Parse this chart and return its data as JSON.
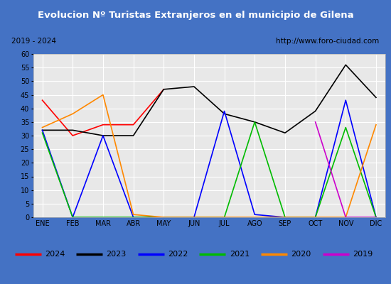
{
  "title": "Evolucion Nº Turistas Extranjeros en el municipio de Gilena",
  "subtitle_left": "2019 - 2024",
  "subtitle_right": "http://www.foro-ciudad.com",
  "months": [
    "ENE",
    "FEB",
    "MAR",
    "ABR",
    "MAY",
    "JUN",
    "JUL",
    "AGO",
    "SEP",
    "OCT",
    "NOV",
    "DIC"
  ],
  "series": {
    "2024": {
      "color": "#ff0000",
      "data": [
        43,
        30,
        34,
        34,
        47,
        null,
        null,
        null,
        null,
        null,
        null,
        null
      ]
    },
    "2023": {
      "color": "#000000",
      "data": [
        32,
        32,
        30,
        30,
        47,
        48,
        38,
        35,
        31,
        39,
        56,
        44
      ]
    },
    "2022": {
      "color": "#0000ff",
      "data": [
        32,
        0,
        30,
        0,
        0,
        0,
        39,
        1,
        0,
        0,
        43,
        0
      ]
    },
    "2021": {
      "color": "#00bb00",
      "data": [
        31,
        0,
        0,
        0,
        0,
        0,
        0,
        35,
        0,
        0,
        33,
        0
      ]
    },
    "2020": {
      "color": "#ff8800",
      "data": [
        33,
        38,
        45,
        1,
        0,
        0,
        0,
        0,
        0,
        0,
        0,
        34
      ]
    },
    "2019": {
      "color": "#cc00cc",
      "data": [
        null,
        null,
        null,
        null,
        null,
        null,
        null,
        null,
        null,
        35,
        0,
        0
      ]
    }
  },
  "ylim": [
    0,
    60
  ],
  "yticks": [
    0,
    5,
    10,
    15,
    20,
    25,
    30,
    35,
    40,
    45,
    50,
    55,
    60
  ],
  "title_bg_color": "#4472c4",
  "title_text_color": "#ffffff",
  "plot_bg_color": "#e8e8e8",
  "grid_color": "#cccccc",
  "outer_bg_color": "#4472c4",
  "inner_bg_color": "#ffffff",
  "legend_border_color": "#888888"
}
